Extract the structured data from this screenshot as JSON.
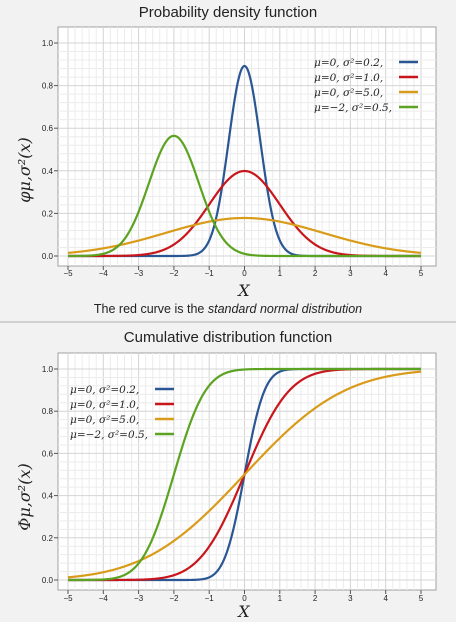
{
  "caption": {
    "prefix": "The red curve is the ",
    "emphasis": "standard normal distribution"
  },
  "chart_data": [
    {
      "type": "line",
      "title": "Probability density function",
      "xlabel": "X",
      "ylabel": "φμ,σ²(x)",
      "xlim": [
        -5,
        5
      ],
      "ylim": [
        0,
        1.0
      ],
      "x_ticks": [
        "−5",
        "−4",
        "−3",
        "−2",
        "−1",
        "0",
        "1",
        "2",
        "3",
        "4",
        "5"
      ],
      "y_ticks": [
        "0.0",
        "0.2",
        "0.4",
        "0.6",
        "0.8",
        "1.0"
      ],
      "grid": true,
      "legend_position": "top-right",
      "series": [
        {
          "name": "μ=0,   σ²=0.2,",
          "mu": 0,
          "variance": 0.2,
          "color": "#2a5694"
        },
        {
          "name": "μ=0,   σ²=1.0,",
          "mu": 0,
          "variance": 1.0,
          "color": "#c8171c"
        },
        {
          "name": "μ=0,   σ²=5.0,",
          "mu": 0,
          "variance": 5.0,
          "color": "#d99b1a"
        },
        {
          "name": "μ=−2, σ²=0.5,",
          "mu": -2,
          "variance": 0.5,
          "color": "#5ba320"
        }
      ]
    },
    {
      "type": "line",
      "title": "Cumulative distribution function",
      "xlabel": "X",
      "ylabel": "Φμ,σ²(x)",
      "xlim": [
        -5,
        5
      ],
      "ylim": [
        0,
        1.0
      ],
      "x_ticks": [
        "−5",
        "−4",
        "−3",
        "−2",
        "−1",
        "0",
        "1",
        "2",
        "3",
        "4",
        "5"
      ],
      "y_ticks": [
        "0.0",
        "0.2",
        "0.4",
        "0.6",
        "0.8",
        "1.0"
      ],
      "grid": true,
      "legend_position": "top-left",
      "series": [
        {
          "name": "μ=0,   σ²=0.2,",
          "mu": 0,
          "variance": 0.2,
          "color": "#2a5694"
        },
        {
          "name": "μ=0,   σ²=1.0,",
          "mu": 0,
          "variance": 1.0,
          "color": "#c8171c"
        },
        {
          "name": "μ=0,   σ²=5.0,",
          "mu": 0,
          "variance": 5.0,
          "color": "#d99b1a"
        },
        {
          "name": "μ=−2, σ²=0.5,",
          "mu": -2,
          "variance": 0.5,
          "color": "#5ba320"
        }
      ]
    }
  ]
}
